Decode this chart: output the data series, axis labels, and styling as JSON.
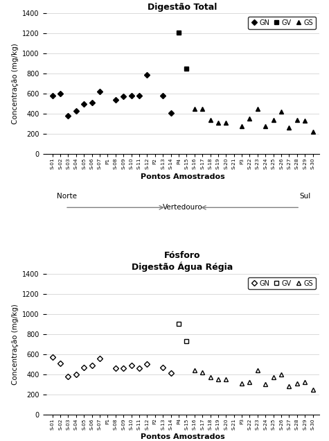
{
  "title1": "Fósforo\nDigestão Total",
  "title2": "Fósforo\nDigestão Água Régia",
  "xlabel": "Pontos Amostrados",
  "ylabel": "Concentração (mg/kg)",
  "ylim": [
    0,
    1400
  ],
  "yticks": [
    0,
    200,
    400,
    600,
    800,
    1000,
    1200,
    1400
  ],
  "x_labels": [
    "S-01",
    "S-02",
    "S-03",
    "S-04",
    "S-05",
    "S-06",
    "S-07",
    "P1",
    "S-08",
    "S-09",
    "S-10",
    "S-11",
    "S-12",
    "P2",
    "S-13",
    "S-14",
    "P4",
    "S-15",
    "S-16",
    "S-17",
    "S-18",
    "S-19",
    "S-20",
    "S-21",
    "P3",
    "S-22",
    "S-23",
    "S-24",
    "S-25",
    "S-26",
    "S-27",
    "S-28",
    "S-29",
    "S-30"
  ],
  "GN_indices_total": [
    0,
    1,
    2,
    3,
    4,
    5,
    6,
    8,
    9,
    10,
    11,
    12,
    14,
    15
  ],
  "GN_values_total": [
    580,
    600,
    380,
    430,
    500,
    510,
    620,
    540,
    570,
    580,
    580,
    790,
    580,
    410
  ],
  "GV_indices_total": [
    16,
    17
  ],
  "GV_values_total": [
    1210,
    850
  ],
  "GS_indices_total": [
    18,
    19,
    20,
    21,
    22,
    24,
    25,
    26,
    27,
    28,
    29,
    30,
    31,
    32,
    33
  ],
  "GS_values_total": [
    450,
    450,
    340,
    310,
    310,
    280,
    350,
    450,
    280,
    340,
    420,
    260,
    340,
    330,
    220
  ],
  "GN_indices_agua": [
    0,
    1,
    2,
    3,
    4,
    5,
    6,
    8,
    9,
    10,
    11,
    12,
    14,
    15
  ],
  "GN_values_agua": [
    570,
    510,
    380,
    400,
    470,
    490,
    560,
    460,
    460,
    490,
    460,
    500,
    470,
    410
  ],
  "GV_indices_agua": [
    16,
    17
  ],
  "GV_values_agua": [
    900,
    730
  ],
  "GS_indices_agua": [
    18,
    19,
    20,
    21,
    22,
    24,
    25,
    26,
    27,
    28,
    29,
    30,
    31,
    32,
    33
  ],
  "GS_values_agua": [
    440,
    420,
    370,
    350,
    350,
    310,
    320,
    440,
    300,
    370,
    400,
    280,
    310,
    320,
    250
  ],
  "bg_color": "#ffffff",
  "grid_color": "#cccccc",
  "norte_text": "Norte",
  "sul_text": "Sul",
  "vertedouro_text": "Vertedouro"
}
